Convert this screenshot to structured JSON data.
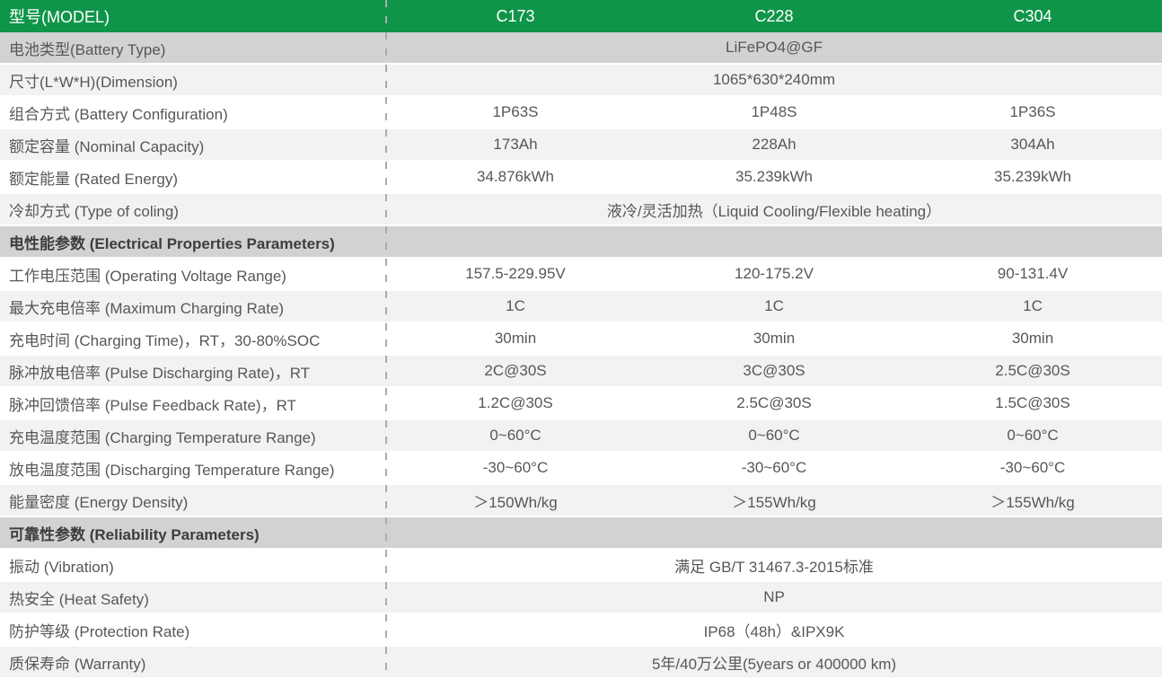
{
  "colors": {
    "header_green": "#0F9549",
    "header_text": "#FFFFFF",
    "row_dark": "#D2D2D3",
    "row_light": "#F2F2F3",
    "row_white": "#FFFFFF",
    "label_text": "#565758",
    "section_text": "#3C3D3E",
    "divider": "#ABABAB"
  },
  "header": {
    "label": "型号(MODEL)",
    "columns": [
      "C173",
      "C228",
      "C304"
    ]
  },
  "rows": [
    {
      "label": "电池类型(Battery Type)",
      "type": "data",
      "shade": "dark",
      "span": "LiFePO4@GF"
    },
    {
      "label": "尺寸(L*W*H)(Dimension)",
      "type": "data",
      "shade": "light",
      "span": "1065*630*240mm"
    },
    {
      "label": "组合方式 (Battery Configuration)",
      "type": "data",
      "shade": "white",
      "values": [
        "1P63S",
        "1P48S",
        "1P36S"
      ]
    },
    {
      "label": "额定容量 (Nominal Capacity)",
      "type": "data",
      "shade": "light",
      "values": [
        "173Ah",
        "228Ah",
        "304Ah"
      ]
    },
    {
      "label": "额定能量 (Rated Energy)",
      "type": "data",
      "shade": "white",
      "values": [
        "34.876kWh",
        "35.239kWh",
        "35.239kWh"
      ]
    },
    {
      "label": "冷却方式 (Type of coling)",
      "type": "data",
      "shade": "light",
      "span": "液冷/灵活加热（Liquid Cooling/Flexible heating）"
    },
    {
      "label": "电性能参数 (Electrical Properties Parameters)",
      "type": "section",
      "shade": "dark"
    },
    {
      "label": "工作电压范围 (Operating Voltage Range)",
      "type": "data",
      "shade": "white",
      "values": [
        "157.5-229.95V",
        "120-175.2V",
        "90-131.4V"
      ]
    },
    {
      "label": "最大充电倍率 (Maximum Charging Rate)",
      "type": "data",
      "shade": "light",
      "values": [
        "1C",
        "1C",
        "1C"
      ]
    },
    {
      "label": "充电时间 (Charging Time)，RT，30-80%SOC",
      "type": "data",
      "shade": "white",
      "values": [
        "30min",
        "30min",
        "30min"
      ]
    },
    {
      "label": "脉冲放电倍率 (Pulse Discharging Rate)，RT",
      "type": "data",
      "shade": "light",
      "values": [
        "2C@30S",
        "3C@30S",
        "2.5C@30S"
      ]
    },
    {
      "label": "脉冲回馈倍率 (Pulse Feedback Rate)，RT",
      "type": "data",
      "shade": "white",
      "values": [
        "1.2C@30S",
        "2.5C@30S",
        "1.5C@30S"
      ]
    },
    {
      "label": "充电温度范围 (Charging Temperature Range)",
      "type": "data",
      "shade": "light",
      "values": [
        "0~60°C",
        "0~60°C",
        "0~60°C"
      ]
    },
    {
      "label": "放电温度范围 (Discharging Temperature Range)",
      "type": "data",
      "shade": "white",
      "values": [
        "-30~60°C",
        "-30~60°C",
        "-30~60°C"
      ]
    },
    {
      "label": "能量密度 (Energy Density)",
      "type": "data",
      "shade": "light",
      "values": [
        "＞150Wh/kg",
        "＞155Wh/kg",
        "＞155Wh/kg"
      ]
    },
    {
      "label": "可靠性参数 (Reliability Parameters)",
      "type": "section",
      "shade": "dark"
    },
    {
      "label": "振动 (Vibration)",
      "type": "data",
      "shade": "white",
      "span": "满足 GB/T 31467.3-2015标准"
    },
    {
      "label": "热安全 (Heat Safety)",
      "type": "data",
      "shade": "light",
      "span": "NP"
    },
    {
      "label": "防护等级 (Protection Rate)",
      "type": "data",
      "shade": "white",
      "span": "IP68（48h）&IPX9K"
    },
    {
      "label": "质保寿命 (Warranty)",
      "type": "data",
      "shade": "light",
      "span": "5年/40万公里(5years or 400000 km)"
    }
  ]
}
